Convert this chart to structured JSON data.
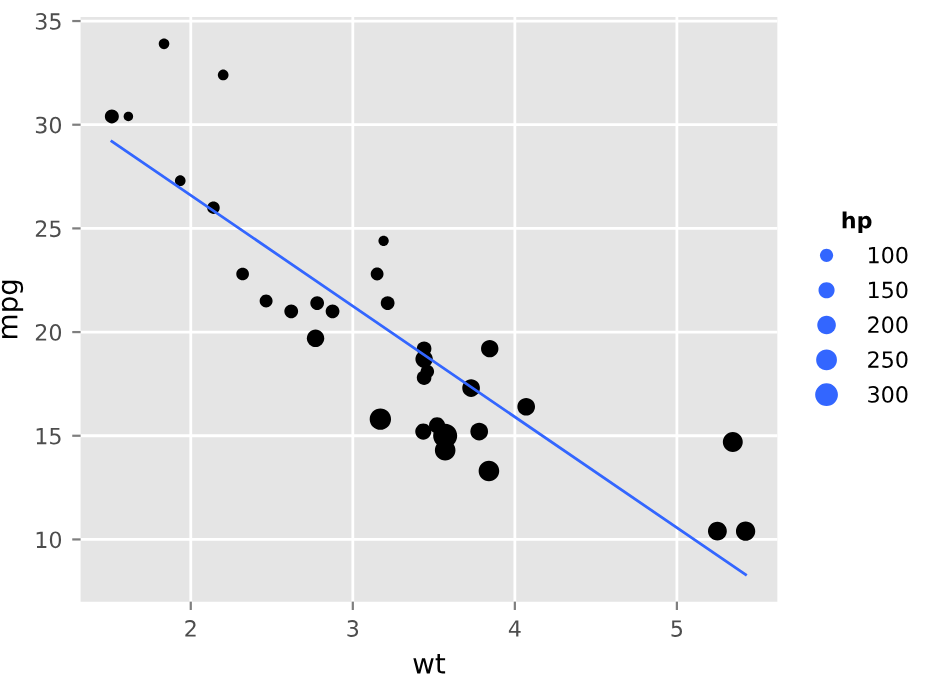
{
  "chart_data": {
    "type": "bubble",
    "xlabel": "wt",
    "ylabel": "mpg",
    "legend_title": "hp",
    "size_legend": [
      100,
      150,
      200,
      250,
      300
    ],
    "grid": true,
    "xlim": [
      1.32,
      5.62
    ],
    "ylim": [
      7.0,
      35.2
    ],
    "xticks": [
      2,
      3,
      4,
      5
    ],
    "yticks": [
      10,
      15,
      20,
      25,
      30,
      35
    ],
    "series": [
      {
        "color": "#000000",
        "x": [
          2.62,
          2.875,
          2.32,
          3.215,
          3.44,
          3.46,
          3.57,
          3.19,
          3.15,
          3.44,
          3.44,
          4.07,
          3.73,
          3.78,
          5.25,
          5.424,
          5.345,
          2.2,
          1.615,
          1.835,
          2.465,
          3.52,
          3.435,
          3.84,
          3.845,
          1.935,
          2.14,
          1.513,
          3.17,
          2.77,
          3.57,
          2.78
        ],
        "values": [
          21.0,
          21.0,
          22.8,
          21.4,
          18.7,
          18.1,
          14.3,
          24.4,
          22.8,
          19.2,
          17.8,
          16.4,
          17.3,
          15.2,
          10.4,
          10.4,
          14.7,
          32.4,
          30.4,
          33.9,
          21.5,
          15.5,
          15.2,
          13.3,
          19.2,
          27.3,
          26.0,
          30.4,
          15.8,
          19.7,
          15.0,
          21.4
        ],
        "sizes": [
          110,
          110,
          93,
          110,
          175,
          105,
          245,
          62,
          95,
          123,
          123,
          180,
          180,
          180,
          205,
          215,
          230,
          66,
          52,
          65,
          97,
          150,
          150,
          245,
          175,
          66,
          91,
          113,
          264,
          175,
          335,
          109
        ]
      },
      {
        "type": "line",
        "color": "#3366ff",
        "x": [
          1.513,
          5.424
        ],
        "values": [
          29.2,
          8.3
        ]
      }
    ]
  }
}
